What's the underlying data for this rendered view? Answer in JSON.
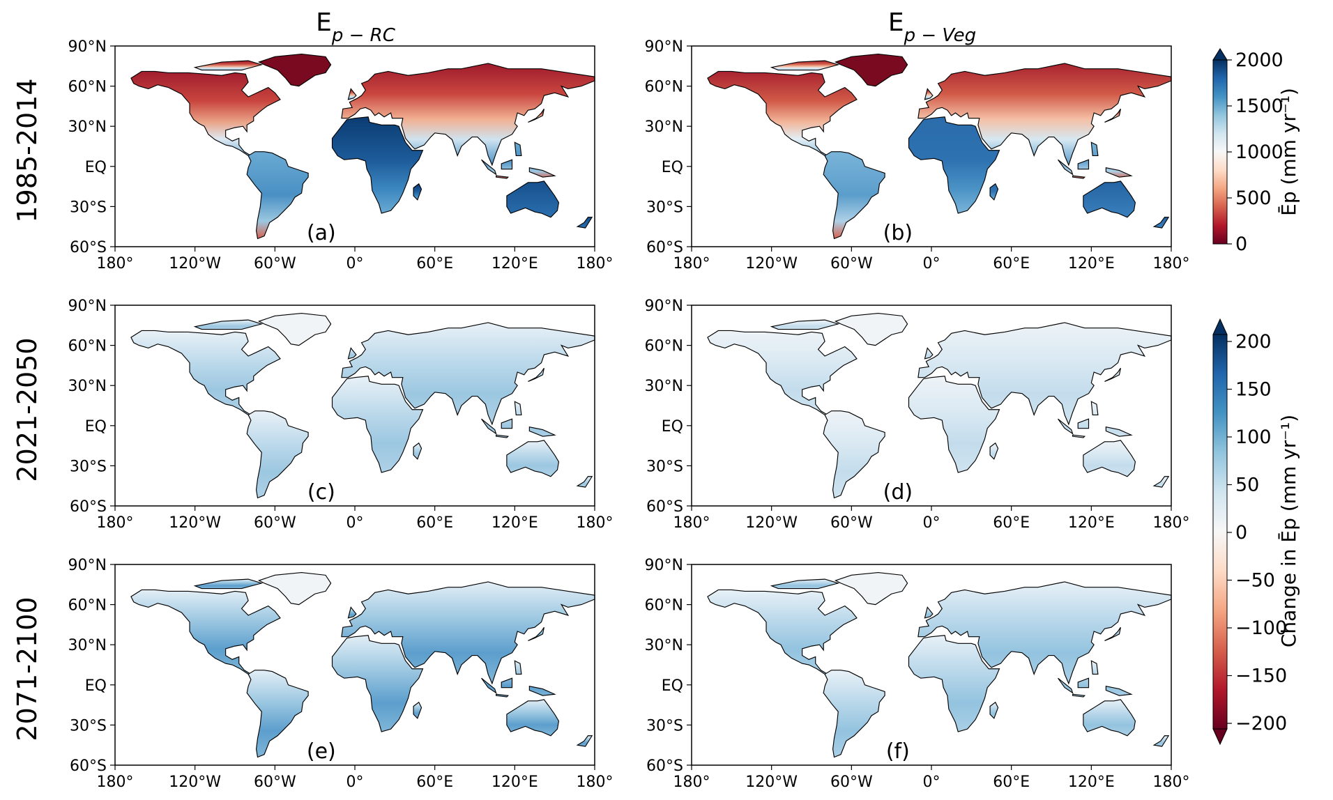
{
  "columns": [
    {
      "id": "rc",
      "label_base": "E",
      "label_sub": "p − RC"
    },
    {
      "id": "veg",
      "label_base": "E",
      "label_sub": "p − Veg"
    }
  ],
  "rows": [
    {
      "label": "1985-2014",
      "panels": [
        "(a)",
        "(b)"
      ],
      "scale": "absolute"
    },
    {
      "label": "2021-2050",
      "panels": [
        "(c)",
        "(d)"
      ],
      "scale": "change"
    },
    {
      "label": "2071-2100",
      "panels": [
        "(e)",
        "(f)"
      ],
      "scale": "change"
    }
  ],
  "axes": {
    "lon_ticks": [
      "180°",
      "120°W",
      "60°W",
      "0°",
      "60°E",
      "120°E",
      "180°"
    ],
    "lat_ticks": [
      "90°N",
      "60°N",
      "30°N",
      "EQ",
      "30°S",
      "60°S"
    ],
    "lon_range": [
      -180,
      180
    ],
    "lat_range": [
      -60,
      90
    ]
  },
  "colorbars": {
    "absolute": {
      "ticks": [
        "2000",
        "1500",
        "1000",
        "500",
        "0"
      ],
      "range": [
        0,
        2000
      ],
      "label": "Ēp (mm yr⁻¹)",
      "colormap": [
        "#67001f",
        "#b2182b",
        "#d6604d",
        "#f4a582",
        "#fddbc7",
        "#f7f7f7",
        "#d1e5f0",
        "#92c5de",
        "#4393c3",
        "#2166ac",
        "#053061"
      ]
    },
    "change": {
      "ticks": [
        "200",
        "150",
        "100",
        "50",
        "0",
        "−50",
        "−100",
        "−150",
        "−200"
      ],
      "range": [
        -200,
        200
      ],
      "label": "Change in Ēp (mm yr⁻¹)",
      "colormap": [
        "#67001f",
        "#b2182b",
        "#d6604d",
        "#f4a582",
        "#fddbc7",
        "#f7f7f7",
        "#d1e5f0",
        "#92c5de",
        "#4393c3",
        "#2166ac",
        "#053061"
      ]
    }
  }
}
